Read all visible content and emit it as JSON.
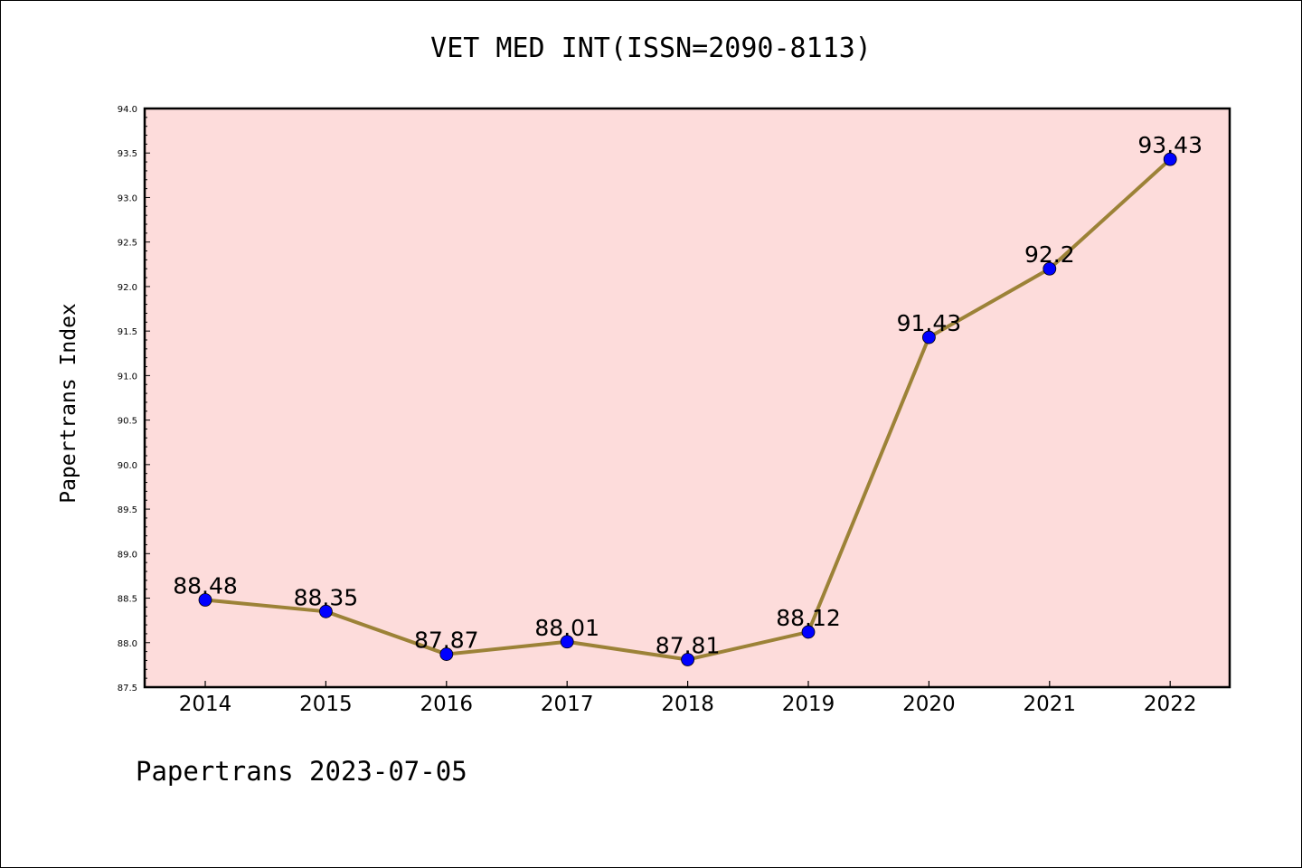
{
  "chart_data": {
    "type": "line",
    "title": "VET MED INT(ISSN=2090-8113)",
    "xlabel": "",
    "ylabel": "Papertrans Index",
    "categories": [
      "2014",
      "2015",
      "2016",
      "2017",
      "2018",
      "2019",
      "2020",
      "2021",
      "2022"
    ],
    "series": [
      {
        "values": [
          88.48,
          88.35,
          87.87,
          88.01,
          87.81,
          88.12,
          91.43,
          92.2,
          93.43
        ],
        "labels": [
          "88.48",
          "88.35",
          "87.87",
          "88.01",
          "87.81",
          "88.12",
          "91.43",
          "92.2",
          "93.43"
        ]
      }
    ],
    "ylim": [
      87.5,
      94.0
    ],
    "yticks": [
      "87.5",
      "88.0",
      "88.5",
      "89.0",
      "89.5",
      "90.0",
      "90.5",
      "91.0",
      "91.5",
      "92.0",
      "92.5",
      "93.0",
      "93.5",
      "94.0"
    ],
    "grid": false,
    "colors": {
      "plot_background": "#fddcdb",
      "line": "#9c8237",
      "marker": "#0000ff",
      "axis": "#000000"
    }
  },
  "footer": "Papertrans 2023-07-05"
}
